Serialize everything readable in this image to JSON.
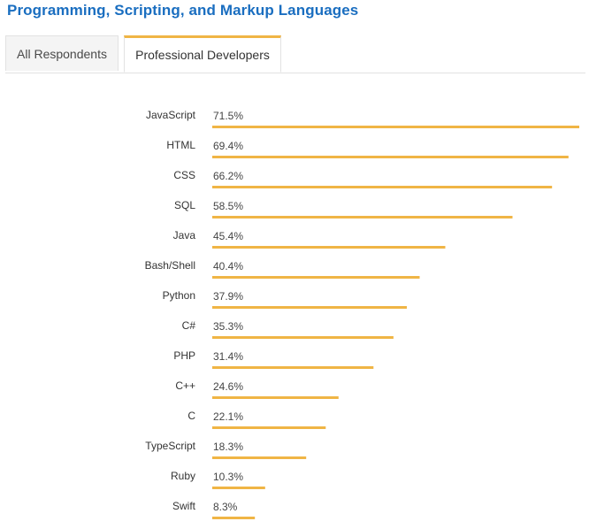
{
  "header": {
    "title": "Programming, Scripting, and Markup Languages"
  },
  "tabs": [
    {
      "label": "All Respondents",
      "active": false
    },
    {
      "label": "Professional Developers",
      "active": true
    }
  ],
  "colors": {
    "title": "#1a6ec0",
    "bar": "#f0b545",
    "tab_active_border": "#f0b545"
  },
  "chart_data": {
    "type": "bar",
    "orientation": "horizontal",
    "categories": [
      "JavaScript",
      "HTML",
      "CSS",
      "SQL",
      "Java",
      "Bash/Shell",
      "Python",
      "C#",
      "PHP",
      "C++",
      "C",
      "TypeScript",
      "Ruby",
      "Swift"
    ],
    "values": [
      71.5,
      69.4,
      66.2,
      58.5,
      45.4,
      40.4,
      37.9,
      35.3,
      31.4,
      24.6,
      22.1,
      18.3,
      10.3,
      8.3
    ],
    "value_labels": [
      "71.5%",
      "69.4%",
      "66.2%",
      "58.5%",
      "45.4%",
      "40.4%",
      "37.9%",
      "35.3%",
      "31.4%",
      "24.6%",
      "22.1%",
      "18.3%",
      "10.3%",
      "8.3%"
    ],
    "unit": "%",
    "xlim": [
      0,
      71.5
    ],
    "grid": false,
    "legend": false
  }
}
